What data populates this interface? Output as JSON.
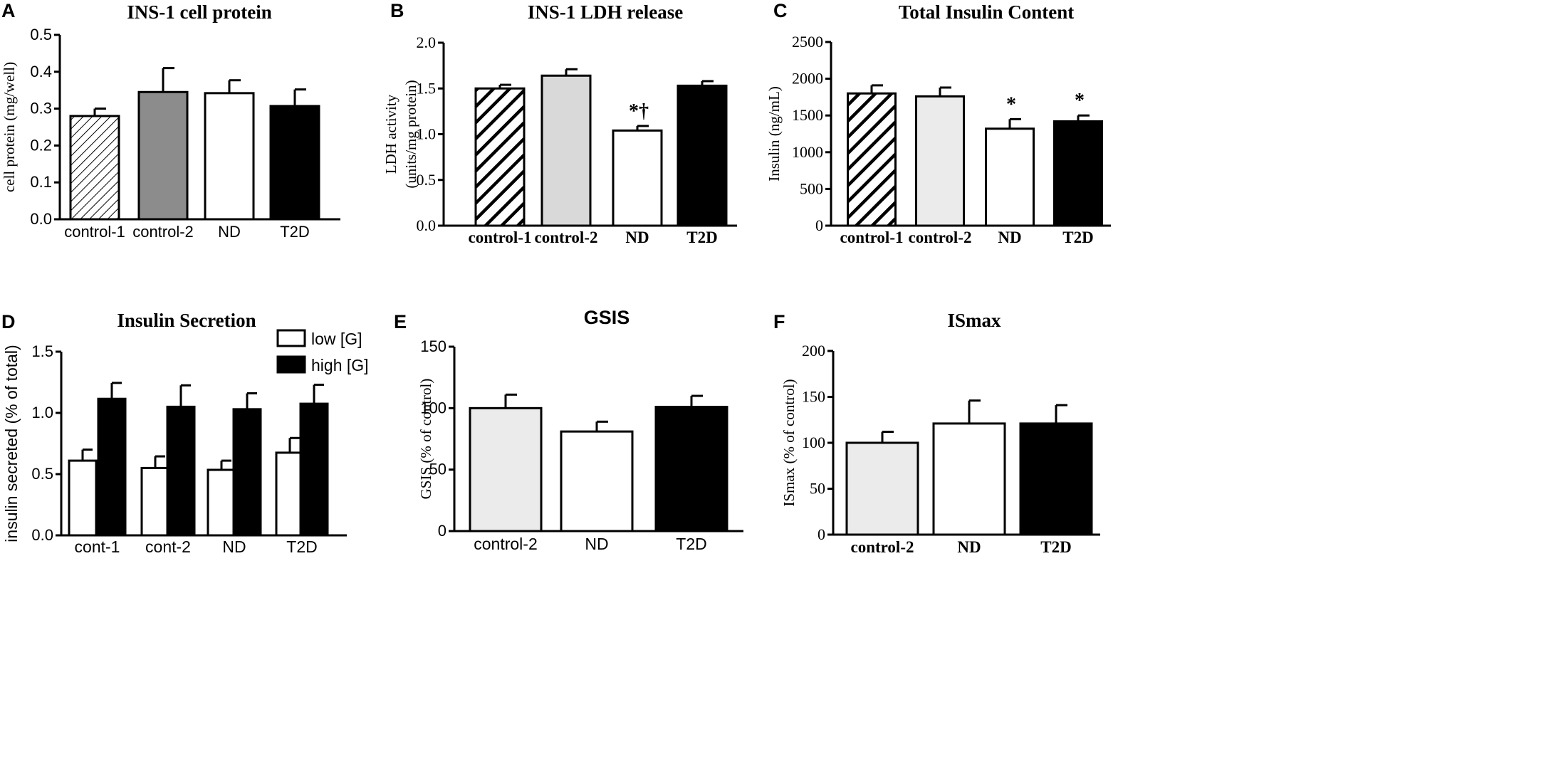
{
  "chart_data": [
    {
      "panel": "A",
      "type": "bar",
      "title": "INS-1 cell protein",
      "ylabel": "cell protein (mg/well)",
      "xlabel": "",
      "ylim": [
        0,
        0.5
      ],
      "ticks": [
        "0.0",
        "0.1",
        "0.2",
        "0.3",
        "0.4",
        "0.5"
      ],
      "categories": [
        "control-1",
        "control-2",
        "ND",
        "T2D"
      ],
      "values": [
        0.28,
        0.345,
        0.342,
        0.307
      ],
      "errors": [
        0.02,
        0.065,
        0.035,
        0.045
      ],
      "fills": [
        "hatch-thin",
        "#8c8c8c",
        "#ffffff",
        "#000000"
      ],
      "annotations": [
        "",
        "",
        "",
        ""
      ]
    },
    {
      "panel": "B",
      "type": "bar",
      "title": "INS-1 LDH release",
      "ylabel": "LDH activity",
      "ylabel2": "(units/mg protein)",
      "xlabel": "",
      "ylim": [
        0,
        2.0
      ],
      "ticks": [
        "0.0",
        "0.5",
        "1.0",
        "1.5",
        "2.0"
      ],
      "categories": [
        "control-1",
        "control-2",
        "ND",
        "T2D"
      ],
      "values": [
        1.5,
        1.64,
        1.04,
        1.53
      ],
      "errors": [
        0.04,
        0.07,
        0.05,
        0.05
      ],
      "fills": [
        "hatch-thick",
        "#d9d9d9",
        "#ffffff",
        "#000000"
      ],
      "annotations": [
        "",
        "",
        "*†",
        ""
      ]
    },
    {
      "panel": "C",
      "type": "bar",
      "title": "Total Insulin Content",
      "ylabel": "Insulin (ng/mL)",
      "xlabel": "",
      "ylim": [
        0,
        2500
      ],
      "ticks": [
        "0",
        "500",
        "1000",
        "1500",
        "2000",
        "2500"
      ],
      "categories": [
        "control-1",
        "control-2",
        "ND",
        "T2D"
      ],
      "values": [
        1800,
        1760,
        1320,
        1420
      ],
      "errors": [
        110,
        120,
        130,
        80
      ],
      "fills": [
        "hatch-thick",
        "#ebebeb",
        "#ffffff",
        "#000000"
      ],
      "annotations": [
        "",
        "",
        "*",
        "*"
      ]
    },
    {
      "panel": "D",
      "type": "bar",
      "title": "Insulin Secretion",
      "ylabel": "insulin secreted (% of total)",
      "xlabel": "",
      "ylim": [
        0,
        1.5
      ],
      "ticks": [
        "0.0",
        "0.5",
        "1.0",
        "1.5"
      ],
      "categories": [
        "cont-1",
        "cont-2",
        "ND",
        "T2D"
      ],
      "series": [
        {
          "name": "low [G]",
          "values": [
            0.61,
            0.55,
            0.535,
            0.675
          ],
          "errors": [
            0.09,
            0.095,
            0.075,
            0.12
          ],
          "fill": "#ffffff"
        },
        {
          "name": "high [G]",
          "values": [
            1.115,
            1.05,
            1.03,
            1.075
          ],
          "errors": [
            0.13,
            0.175,
            0.13,
            0.155
          ],
          "fill": "#000000"
        }
      ],
      "legend": "top-right"
    },
    {
      "panel": "E",
      "type": "bar",
      "title": "GSIS",
      "ylabel": "GSIS (% of control)",
      "xlabel": "",
      "ylim": [
        0,
        150
      ],
      "ticks": [
        "0",
        "50",
        "100",
        "150"
      ],
      "categories": [
        "control-2",
        "ND",
        "T2D"
      ],
      "values": [
        100,
        81,
        101
      ],
      "errors": [
        11,
        8,
        9
      ],
      "fills": [
        "#ebebeb",
        "#ffffff",
        "#000000"
      ],
      "annotations": [
        "",
        "",
        ""
      ]
    },
    {
      "panel": "F",
      "type": "bar",
      "title": "ISmax",
      "ylabel": "ISmax (% of control)",
      "xlabel": "",
      "ylim": [
        0,
        200
      ],
      "ticks": [
        "0",
        "50",
        "100",
        "150",
        "200"
      ],
      "categories": [
        "control-2",
        "ND",
        "T2D"
      ],
      "values": [
        100,
        121,
        121
      ],
      "errors": [
        12,
        25,
        20
      ],
      "fills": [
        "#ebebeb",
        "#ffffff",
        "#000000"
      ],
      "annotations": [
        "",
        "",
        ""
      ]
    }
  ]
}
